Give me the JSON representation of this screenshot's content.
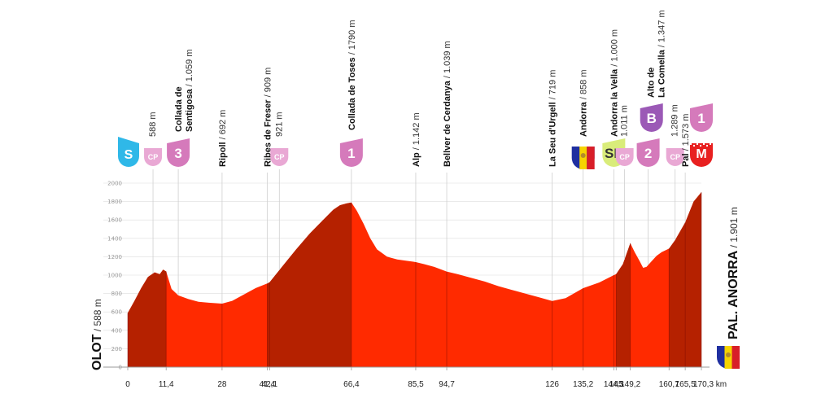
{
  "chart_data": {
    "type": "area",
    "title": "",
    "xlabel": "",
    "ylabel": "",
    "x_unit": "km",
    "xlim": [
      0,
      170.3
    ],
    "ylim": [
      0,
      2000
    ],
    "yticks": [
      0,
      200,
      400,
      600,
      800,
      1000,
      1200,
      1400,
      1600,
      1800,
      2000
    ],
    "grid": true,
    "profile": {
      "x": [
        0,
        2,
        4,
        6,
        8,
        9.5,
        10.5,
        11.4,
        13,
        15,
        18,
        21,
        24,
        28,
        31,
        35,
        38,
        41.4,
        42.1,
        46,
        50,
        54,
        58,
        61,
        63,
        65,
        66.4,
        68,
        70,
        72,
        74,
        77,
        80,
        83,
        85.5,
        88,
        91,
        94.7,
        98,
        102,
        106,
        110,
        114,
        118,
        122,
        126,
        130,
        135.2,
        140,
        144.3,
        145,
        147,
        149.2,
        150.5,
        152,
        153,
        154,
        155.5,
        157,
        158.5,
        160.7,
        162.5,
        165.5,
        168,
        170.3
      ],
      "y": [
        588,
        720,
        860,
        980,
        1030,
        1010,
        1060,
        1040,
        850,
        780,
        740,
        710,
        700,
        690,
        720,
        800,
        860,
        909,
        921,
        1100,
        1280,
        1450,
        1600,
        1710,
        1760,
        1780,
        1790,
        1700,
        1560,
        1400,
        1280,
        1200,
        1170,
        1155,
        1142,
        1120,
        1090,
        1039,
        1010,
        970,
        930,
        880,
        840,
        800,
        760,
        719,
        750,
        858,
        920,
        1000,
        1011,
        1120,
        1347,
        1250,
        1150,
        1080,
        1090,
        1150,
        1210,
        1250,
        1289,
        1380,
        1573,
        1800,
        1901
      ]
    },
    "x_ticks": [
      "0",
      "11,4",
      "28",
      "41,4",
      "42,1",
      "66,4",
      "85,5",
      "94,7",
      "126",
      "135,2",
      "144,3",
      "145",
      "149,2",
      "160,7",
      "165,5",
      "170,3 km"
    ],
    "x_tick_values": [
      0,
      11.4,
      28,
      41.4,
      42.1,
      66.4,
      85.5,
      94.7,
      126,
      135.2,
      144.3,
      145,
      149.2,
      160.7,
      165.5,
      170.3
    ],
    "start": {
      "name": "OLOT",
      "alt": "588 m"
    },
    "finish": {
      "name": "PAL. ANORRA",
      "alt": "1.901 m"
    },
    "climb_segments": [
      [
        0,
        11.4
      ],
      [
        41.4,
        66.4
      ],
      [
        145,
        149.2
      ],
      [
        160.7,
        170.3
      ]
    ],
    "checkpoints": [
      {
        "km": 0,
        "badge": "S",
        "kind": "start",
        "color": "#2fb8e8",
        "name": "",
        "alt": ""
      },
      {
        "km": 7.5,
        "badge": "CP",
        "kind": "sprint",
        "color": "#e9a8d4",
        "name": "",
        "alt": "588 m"
      },
      {
        "km": 15,
        "badge": "3",
        "kind": "climb3",
        "color": "#d57abb",
        "name": "Collada de Sentigosa",
        "name_line1": "Collada de",
        "name_line2": "Sentigosa",
        "alt": "1.059 m"
      },
      {
        "km": 28,
        "badge": "",
        "kind": "place",
        "color": "",
        "name": "Ripoll",
        "alt": "692 m"
      },
      {
        "km": 41.4,
        "badge": "",
        "kind": "place",
        "color": "",
        "name": "Ribes de Freser",
        "alt": "909 m"
      },
      {
        "km": 45,
        "badge": "CP",
        "kind": "sprint",
        "color": "#e9a8d4",
        "name": "",
        "alt": "921 m"
      },
      {
        "km": 66.4,
        "badge": "1",
        "kind": "climb1",
        "color": "#d57abb",
        "name": "Collada de Toses",
        "alt": "1790 m"
      },
      {
        "km": 85.5,
        "badge": "",
        "kind": "place",
        "color": "",
        "name": "Alp",
        "alt": "1.142 m"
      },
      {
        "km": 94.7,
        "badge": "",
        "kind": "place",
        "color": "",
        "name": "Bellver de Cerdanya",
        "alt": "1.039 m"
      },
      {
        "km": 126,
        "badge": "",
        "kind": "place",
        "color": "",
        "name": "La Seu d'Urgell",
        "alt": "719 m"
      },
      {
        "km": 135.2,
        "badge": "flag",
        "kind": "flag",
        "color": "",
        "name": "Andorra",
        "alt": "858 m"
      },
      {
        "km": 144.3,
        "badge": "SP",
        "kind": "sprint-point",
        "color": "#d9ec7a",
        "name": "Andorra la Vella",
        "alt": "1.000 m"
      },
      {
        "km": 147.5,
        "badge": "CP",
        "kind": "sprint",
        "color": "#e9a8d4",
        "name": "",
        "alt": "1.011 m"
      },
      {
        "km": 154.5,
        "badge": "2",
        "kind": "climb2",
        "color": "#d57abb",
        "name": "",
        "alt": ""
      },
      {
        "km": 155.5,
        "badge": "B",
        "kind": "bonus",
        "color": "#9b59b6",
        "name": "Alto de La Comella",
        "name_line1": "Alto de",
        "name_line2": "La Comella",
        "alt": "1.347 m"
      },
      {
        "km": 162.5,
        "badge": "CP",
        "kind": "sprint",
        "color": "#e9a8d4",
        "name": "",
        "alt": "1.289 m"
      },
      {
        "km": 165.5,
        "badge": "",
        "kind": "place",
        "color": "",
        "name": "Pal",
        "alt": "1.573 m"
      },
      {
        "km": 170.3,
        "badge": "1",
        "kind": "climb1",
        "color": "#d57abb",
        "name": "",
        "alt": ""
      },
      {
        "km": 170.3,
        "badge": "M",
        "kind": "finish",
        "color": "#e82020",
        "name": "",
        "alt": ""
      }
    ],
    "colors": {
      "fill": "#ff2a00",
      "fill_dark": "#b52100",
      "grid": "#dddddd"
    }
  }
}
